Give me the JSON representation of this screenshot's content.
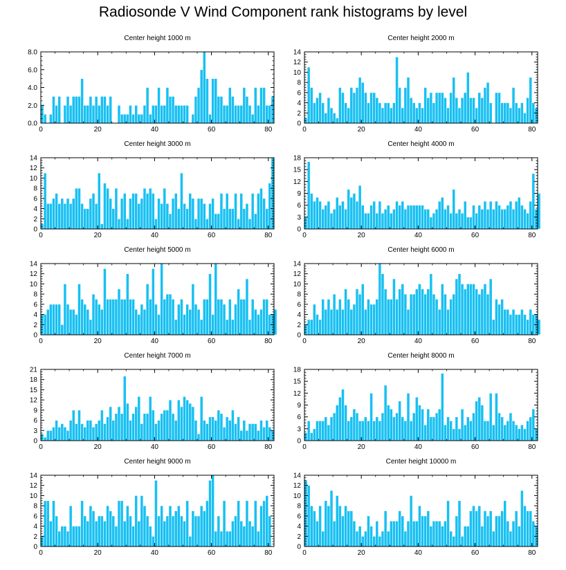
{
  "page": {
    "title": "Radiosonde V Wind Component rank histograms by level"
  },
  "colors": {
    "bar": "#18c0f2",
    "bar_edge": "#ffffff",
    "axis": "#000000"
  },
  "chart_data": [
    {
      "type": "bar",
      "title": "Center height 1000 m",
      "xlim": [
        0,
        82
      ],
      "ylim": [
        0,
        8
      ],
      "xticks": [
        0,
        20,
        40,
        60,
        80
      ],
      "yticks": [
        0,
        2,
        4,
        6,
        8
      ],
      "ytick_labels": [
        "0.0",
        "2.0",
        "4.0",
        "6.0",
        "8.0"
      ],
      "values": [
        2,
        1,
        0,
        1,
        3,
        2,
        3,
        0,
        2,
        3,
        2,
        3,
        3,
        3,
        5,
        2,
        2,
        3,
        2,
        3,
        2,
        3,
        3,
        2,
        3,
        0,
        0,
        2,
        1,
        1,
        1,
        2,
        1,
        2,
        1,
        1,
        2,
        4,
        1,
        2,
        2,
        4,
        2,
        2,
        4,
        3,
        3,
        2,
        2,
        2,
        2,
        2,
        0,
        1,
        3,
        4,
        6,
        8,
        5,
        1,
        5,
        5,
        3,
        3,
        2,
        2,
        4,
        3,
        2,
        2,
        2,
        4,
        3,
        2,
        1,
        4,
        2,
        4,
        4,
        2,
        2,
        3
      ]
    },
    {
      "type": "bar",
      "title": "Center height 2000 m",
      "xlim": [
        0,
        82
      ],
      "ylim": [
        0,
        14
      ],
      "xticks": [
        0,
        20,
        40,
        60,
        80
      ],
      "yticks": [
        0,
        2,
        4,
        6,
        8,
        10,
        12,
        14
      ],
      "ytick_labels": [
        "0",
        "2",
        "4",
        "6",
        "8",
        "10",
        "12",
        "14"
      ],
      "values": [
        1,
        11,
        7,
        4,
        5,
        6,
        4,
        2,
        5,
        3,
        2,
        1,
        7,
        6,
        4,
        3,
        7,
        6,
        7,
        9,
        8,
        6,
        4,
        6,
        6,
        5,
        4,
        3,
        4,
        4,
        3,
        4,
        13,
        7,
        3,
        7,
        9,
        5,
        4,
        3,
        4,
        3,
        7,
        5,
        6,
        4,
        6,
        6,
        6,
        5,
        3,
        6,
        9,
        5,
        3,
        5,
        6,
        10,
        5,
        5,
        3,
        6,
        5,
        7,
        8,
        4,
        0,
        6,
        6,
        4,
        4,
        4,
        3,
        7,
        4,
        3,
        4,
        2,
        5,
        9,
        4,
        3
      ]
    },
    {
      "type": "bar",
      "title": "Center height 3000 m",
      "xlim": [
        0,
        82
      ],
      "ylim": [
        0,
        14
      ],
      "xticks": [
        0,
        20,
        40,
        60,
        80
      ],
      "yticks": [
        0,
        2,
        4,
        6,
        8,
        10,
        12,
        14
      ],
      "ytick_labels": [
        "0",
        "2",
        "4",
        "6",
        "8",
        "10",
        "12",
        "14"
      ],
      "values": [
        1,
        11,
        5,
        5,
        6,
        7,
        5,
        6,
        5,
        6,
        5,
        6,
        8,
        8,
        5,
        4,
        4,
        6,
        7,
        5,
        11,
        1,
        9,
        8,
        6,
        4,
        8,
        2,
        6,
        7,
        2,
        6,
        7,
        7,
        5,
        6,
        8,
        7,
        8,
        7,
        2,
        6,
        5,
        8,
        5,
        3,
        6,
        7,
        4,
        11,
        5,
        4,
        7,
        6,
        2,
        6,
        6,
        5,
        2,
        5,
        6,
        3,
        3,
        7,
        4,
        7,
        4,
        4,
        7,
        2,
        7,
        4,
        5,
        2,
        7,
        3,
        7,
        8,
        6,
        4,
        9,
        14
      ]
    },
    {
      "type": "bar",
      "title": "Center height 4000 m",
      "xlim": [
        0,
        82
      ],
      "ylim": [
        0,
        18
      ],
      "xticks": [
        0,
        20,
        40,
        60,
        80
      ],
      "yticks": [
        0,
        3,
        6,
        9,
        12,
        15,
        18
      ],
      "ytick_labels": [
        "0",
        "3",
        "6",
        "9",
        "12",
        "15",
        "18"
      ],
      "values": [
        3,
        17,
        9,
        7,
        8,
        7,
        5,
        6,
        7,
        4,
        5,
        8,
        6,
        7,
        5,
        10,
        8,
        9,
        7,
        11,
        6,
        4,
        4,
        6,
        7,
        4,
        7,
        4,
        5,
        6,
        4,
        5,
        7,
        6,
        7,
        5,
        6,
        6,
        6,
        6,
        6,
        6,
        5,
        5,
        3,
        4,
        5,
        7,
        8,
        5,
        6,
        4,
        10,
        4,
        5,
        4,
        7,
        3,
        3,
        6,
        4,
        6,
        5,
        7,
        5,
        7,
        5,
        7,
        6,
        5,
        5,
        6,
        7,
        5,
        7,
        8,
        6,
        5,
        4,
        7,
        14,
        5,
        9
      ]
    },
    {
      "type": "bar",
      "title": "Center height 5000 m",
      "xlim": [
        0,
        82
      ],
      "ylim": [
        0,
        14
      ],
      "xticks": [
        0,
        20,
        40,
        60,
        80
      ],
      "yticks": [
        0,
        2,
        4,
        6,
        8,
        10,
        12,
        14
      ],
      "ytick_labels": [
        "0",
        "2",
        "4",
        "6",
        "8",
        "10",
        "12",
        "14"
      ],
      "values": [
        4,
        4,
        5,
        6,
        6,
        6,
        6,
        2,
        10,
        6,
        5,
        5,
        4,
        10,
        7,
        6,
        5,
        3,
        8,
        7,
        6,
        5,
        13,
        7,
        7,
        7,
        7,
        9,
        7,
        7,
        12,
        7,
        7,
        5,
        4,
        6,
        5,
        10,
        7,
        13,
        6,
        4,
        14,
        7,
        8,
        8,
        7,
        3,
        6,
        7,
        4,
        6,
        5,
        10,
        6,
        5,
        3,
        7,
        7,
        12,
        4,
        14,
        7,
        7,
        6,
        3,
        7,
        3,
        6,
        9,
        7,
        7,
        11,
        3,
        7,
        5,
        4,
        5,
        7,
        7,
        4,
        4,
        5
      ]
    },
    {
      "type": "bar",
      "title": "Center height 6000 m",
      "xlim": [
        0,
        82
      ],
      "ylim": [
        0,
        14
      ],
      "xticks": [
        0,
        20,
        40,
        60,
        80
      ],
      "yticks": [
        0,
        2,
        4,
        6,
        8,
        10,
        12,
        14
      ],
      "ytick_labels": [
        "0",
        "2",
        "4",
        "6",
        "8",
        "10",
        "12",
        "14"
      ],
      "values": [
        2,
        3,
        3,
        6,
        4,
        3,
        7,
        5,
        7,
        5,
        8,
        5,
        7,
        5,
        9,
        7,
        5,
        6,
        9,
        8,
        10,
        5,
        7,
        6,
        6,
        7,
        14,
        12,
        9,
        7,
        7,
        11,
        7,
        9,
        10,
        8,
        5,
        8,
        8,
        9,
        10,
        9,
        8,
        9,
        12,
        8,
        7,
        5,
        10,
        8,
        5,
        7,
        8,
        11,
        12,
        10,
        9,
        10,
        10,
        10,
        9,
        8,
        9,
        10,
        8,
        11,
        3,
        7,
        6,
        7,
        5,
        5,
        4,
        5,
        4,
        4,
        5,
        4,
        3,
        5,
        4,
        4,
        3
      ]
    },
    {
      "type": "bar",
      "title": "Center height 7000 m",
      "xlim": [
        0,
        82
      ],
      "ylim": [
        0,
        21
      ],
      "xticks": [
        0,
        20,
        40,
        60,
        80
      ],
      "yticks": [
        0,
        3,
        6,
        9,
        12,
        15,
        18,
        21
      ],
      "ytick_labels": [
        "0",
        "3",
        "6",
        "9",
        "12",
        "15",
        "18",
        "21"
      ],
      "values": [
        2,
        1,
        3,
        3,
        4,
        6,
        4,
        5,
        4,
        3,
        6,
        9,
        5,
        9,
        5,
        4,
        6,
        6,
        4,
        5,
        6,
        9,
        5,
        7,
        10,
        6,
        8,
        10,
        8,
        19,
        11,
        6,
        8,
        10,
        13,
        5,
        8,
        8,
        13,
        9,
        5,
        6,
        8,
        9,
        9,
        12,
        8,
        6,
        12,
        10,
        13,
        12,
        11,
        10,
        6,
        2,
        13,
        6,
        5,
        7,
        7,
        6,
        9,
        8,
        4,
        7,
        6,
        9,
        5,
        7,
        3,
        6,
        3,
        5,
        5,
        5,
        3,
        6,
        4,
        6,
        4,
        3
      ]
    },
    {
      "type": "bar",
      "title": "Center height 8000 m",
      "xlim": [
        0,
        82
      ],
      "ylim": [
        0,
        18
      ],
      "xticks": [
        0,
        20,
        40,
        60,
        80
      ],
      "yticks": [
        0,
        3,
        6,
        9,
        12,
        15,
        18
      ],
      "ytick_labels": [
        "0",
        "3",
        "6",
        "9",
        "12",
        "15",
        "18"
      ],
      "values": [
        2,
        5,
        2,
        3,
        5,
        5,
        5,
        6,
        4,
        6,
        7,
        9,
        11,
        13,
        9,
        5,
        6,
        8,
        7,
        5,
        5,
        6,
        5,
        12,
        5,
        6,
        5,
        7,
        14,
        9,
        8,
        6,
        7,
        10,
        6,
        5,
        12,
        5,
        7,
        11,
        9,
        8,
        4,
        8,
        6,
        6,
        7,
        8,
        17,
        4,
        6,
        5,
        3,
        6,
        3,
        8,
        4,
        6,
        5,
        7,
        10,
        11,
        9,
        5,
        5,
        12,
        4,
        12,
        7,
        6,
        4,
        5,
        7,
        5,
        4,
        3,
        4,
        3,
        5,
        6,
        8,
        3
      ]
    },
    {
      "type": "bar",
      "title": "Center height 9000 m",
      "xlim": [
        0,
        82
      ],
      "ylim": [
        0,
        14
      ],
      "xticks": [
        0,
        20,
        40,
        60,
        80
      ],
      "yticks": [
        0,
        2,
        4,
        6,
        8,
        10,
        12,
        14
      ],
      "ytick_labels": [
        "0",
        "2",
        "4",
        "6",
        "8",
        "10",
        "12",
        "14"
      ],
      "values": [
        2,
        9,
        9,
        5,
        9,
        6,
        3,
        4,
        4,
        3,
        8,
        4,
        4,
        4,
        9,
        6,
        5,
        8,
        7,
        5,
        6,
        6,
        5,
        8,
        7,
        6,
        4,
        9,
        9,
        5,
        8,
        6,
        4,
        10,
        5,
        10,
        8,
        6,
        4,
        2,
        13,
        6,
        8,
        5,
        6,
        8,
        6,
        7,
        8,
        6,
        5,
        9,
        2,
        7,
        6,
        6,
        8,
        7,
        9,
        13,
        14,
        3,
        6,
        3,
        9,
        3,
        3,
        5,
        6,
        9,
        5,
        4,
        9,
        5,
        4,
        9,
        3,
        8,
        9,
        10,
        6
      ]
    },
    {
      "type": "bar",
      "title": "Center height 10000 m",
      "xlim": [
        0,
        82
      ],
      "ylim": [
        0,
        14
      ],
      "xticks": [
        0,
        20,
        40,
        60,
        80
      ],
      "yticks": [
        0,
        2,
        4,
        6,
        8,
        10,
        12,
        14
      ],
      "ytick_labels": [
        "0",
        "2",
        "4",
        "6",
        "8",
        "10",
        "12",
        "14"
      ],
      "values": [
        13,
        12,
        8,
        7,
        5,
        8,
        3,
        9,
        8,
        11,
        5,
        10,
        8,
        6,
        8,
        7,
        7,
        5,
        3,
        4,
        2,
        3,
        6,
        4,
        2,
        5,
        2,
        3,
        7,
        3,
        5,
        5,
        5,
        7,
        6,
        3,
        5,
        10,
        5,
        5,
        8,
        6,
        6,
        7,
        4,
        5,
        5,
        5,
        4,
        5,
        9,
        3,
        2,
        6,
        9,
        2,
        4,
        4,
        7,
        8,
        7,
        8,
        4,
        7,
        6,
        7,
        3,
        6,
        6,
        7,
        9,
        5,
        3,
        5,
        7,
        4,
        11,
        8,
        7,
        7,
        5,
        4
      ]
    }
  ]
}
